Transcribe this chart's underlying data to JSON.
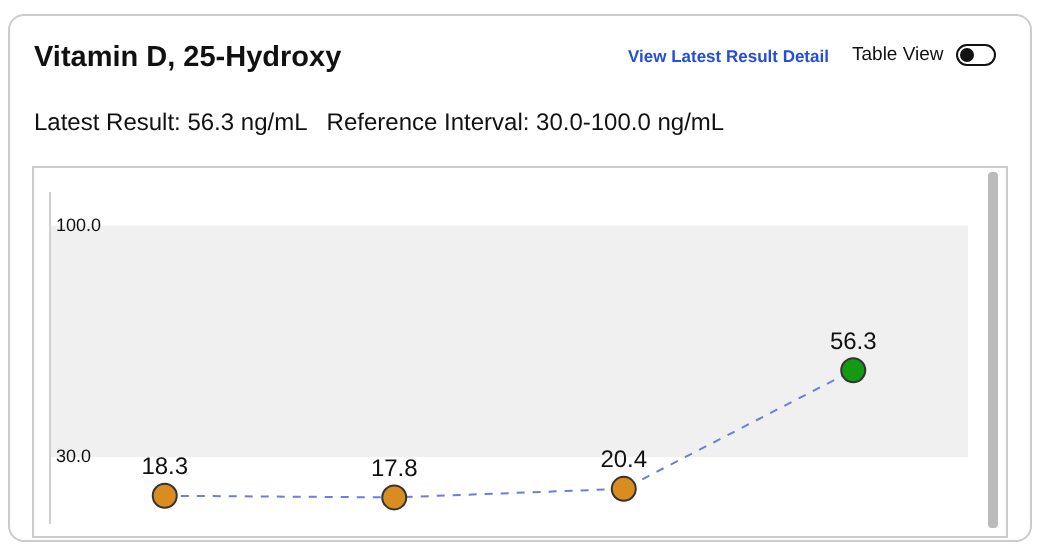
{
  "chart_data": {
    "type": "line",
    "title": "Vitamin D, 25-Hydroxy",
    "subtitle": "Latest Result: 56.3 ng/mL   Reference Interval: 30.0-100.0 ng/mL",
    "annotations": [
      "View Latest Result Detail",
      "Table View"
    ],
    "categories": [
      null,
      null,
      null,
      null
    ],
    "series": [
      {
        "color": "#6b7fd7",
        "colors": [
          "#d98c1f",
          "#d98c1f",
          "#d98c1f",
          "#139a13"
        ],
        "values": [
          18.3,
          17.8,
          20.4,
          56.3
        ]
      }
    ],
    "ylim": [
      10,
      110
    ],
    "yticks": [
      {
        "value": 100,
        "label": "100.0"
      },
      {
        "value": 30,
        "label": "30.0"
      }
    ],
    "bands": [
      {
        "axis": "y",
        "from": 30,
        "to": 100,
        "color": "#f0f0f0"
      }
    ],
    "data_labels": true,
    "grid": false,
    "legend": false,
    "marker": "circle",
    "line_style": "dashed"
  }
}
